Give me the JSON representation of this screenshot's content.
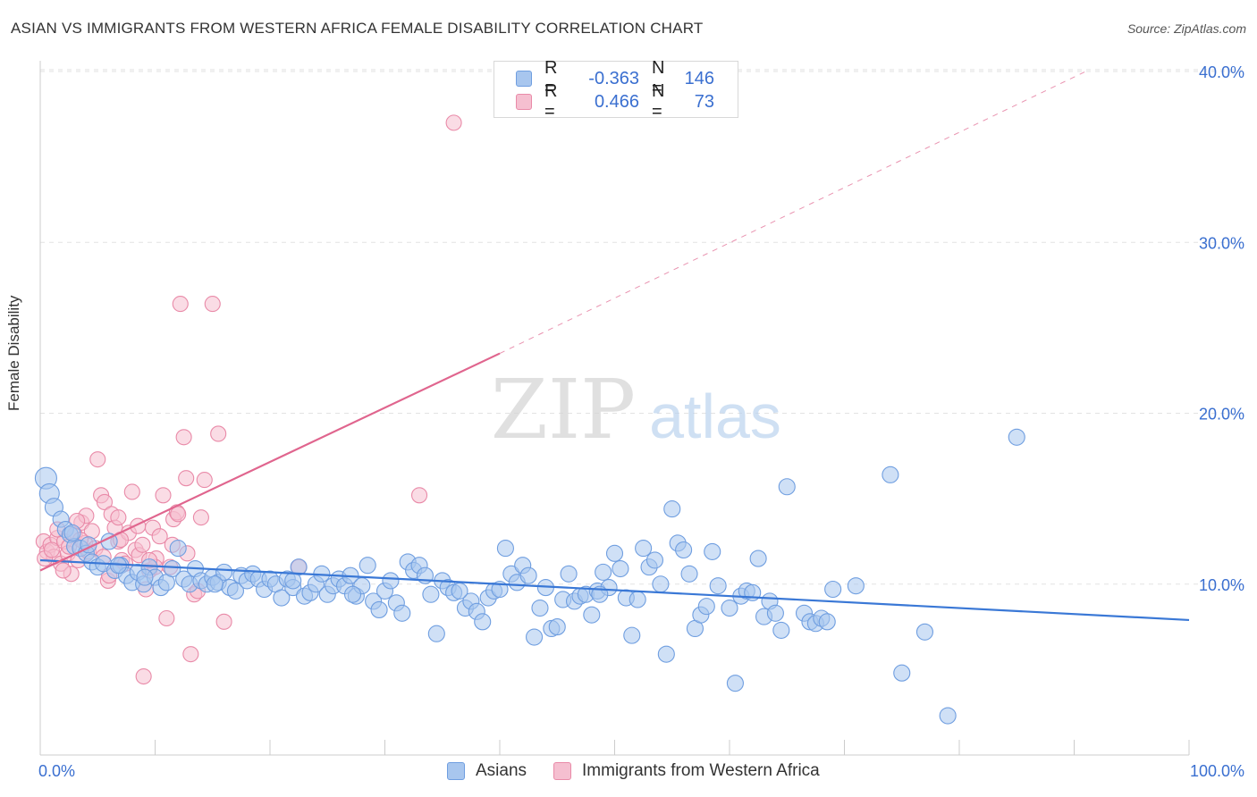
{
  "title": "ASIAN VS IMMIGRANTS FROM WESTERN AFRICA FEMALE DISABILITY CORRELATION CHART",
  "source": "Source: ZipAtlas.com",
  "watermark": {
    "zip": "ZIP",
    "atlas": "atlas"
  },
  "legend": {
    "rows": [
      {
        "label": "R =",
        "r": "-0.363",
        "n_label": "N =",
        "n": "146"
      },
      {
        "label": "R =",
        "r": "0.466",
        "n_label": "N =",
        "n": "73"
      }
    ],
    "bottom": [
      "Asians",
      "Immigrants from Western Africa"
    ]
  },
  "colors": {
    "asian_fill": "#a8c6ee",
    "asian_stroke": "#6f9ee0",
    "asian_line": "#3a78d6",
    "waf_fill": "#f5bfd0",
    "waf_stroke": "#e98aa8",
    "waf_line": "#e0658e",
    "axis_label": "#3a6fd0",
    "grid": "#e2e2e2"
  },
  "chart_data": {
    "type": "scatter",
    "title": "ASIAN VS IMMIGRANTS FROM WESTERN AFRICA FEMALE DISABILITY CORRELATION CHART",
    "xlabel": "",
    "ylabel": "Female Disability",
    "xlim": [
      0,
      100
    ],
    "ylim": [
      0,
      42
    ],
    "x_tick_labels": [
      "0.0%",
      "100.0%"
    ],
    "y_ticks": [
      10,
      20,
      30,
      40
    ],
    "y_tick_labels": [
      "10.0%",
      "20.0%",
      "30.0%",
      "40.0%"
    ],
    "series": [
      {
        "name": "Asians",
        "r": -0.363,
        "n": 146,
        "trend": {
          "x0": 0,
          "y0": 11.4,
          "x1": 100,
          "y1": 7.9
        },
        "points": [
          [
            0.5,
            16.2
          ],
          [
            0.8,
            15.3
          ],
          [
            1.2,
            14.5
          ],
          [
            1.8,
            13.8
          ],
          [
            2.2,
            13.2
          ],
          [
            2.6,
            12.9
          ],
          [
            3.0,
            12.2
          ],
          [
            3.5,
            12.1
          ],
          [
            4.0,
            11.8
          ],
          [
            4.5,
            11.3
          ],
          [
            5.0,
            11.0
          ],
          [
            5.5,
            11.2
          ],
          [
            6.0,
            12.5
          ],
          [
            6.5,
            10.8
          ],
          [
            7.0,
            11.1
          ],
          [
            7.5,
            10.5
          ],
          [
            8.0,
            10.1
          ],
          [
            8.5,
            10.7
          ],
          [
            9.0,
            10.0
          ],
          [
            9.5,
            11.0
          ],
          [
            10.0,
            10.4
          ],
          [
            10.5,
            9.8
          ],
          [
            11.0,
            10.1
          ],
          [
            11.5,
            10.9
          ],
          [
            12.0,
            12.1
          ],
          [
            12.5,
            10.3
          ],
          [
            13.0,
            10.0
          ],
          [
            13.5,
            10.9
          ],
          [
            14.0,
            10.2
          ],
          [
            14.5,
            10.0
          ],
          [
            15.0,
            10.4
          ],
          [
            15.5,
            10.1
          ],
          [
            16.0,
            10.7
          ],
          [
            16.5,
            9.8
          ],
          [
            17.0,
            9.6
          ],
          [
            17.5,
            10.5
          ],
          [
            18.0,
            10.2
          ],
          [
            18.5,
            10.6
          ],
          [
            19.0,
            10.3
          ],
          [
            19.5,
            9.7
          ],
          [
            20.0,
            10.3
          ],
          [
            20.5,
            10.0
          ],
          [
            21.0,
            9.2
          ],
          [
            21.5,
            10.3
          ],
          [
            22.0,
            9.8
          ],
          [
            22.5,
            11.0
          ],
          [
            23.0,
            9.3
          ],
          [
            23.5,
            9.5
          ],
          [
            24.0,
            10.0
          ],
          [
            24.5,
            10.6
          ],
          [
            25.0,
            9.4
          ],
          [
            25.5,
            9.9
          ],
          [
            26.0,
            10.3
          ],
          [
            26.5,
            9.9
          ],
          [
            27.0,
            10.5
          ],
          [
            27.5,
            9.3
          ],
          [
            28.0,
            9.9
          ],
          [
            28.5,
            11.1
          ],
          [
            29.0,
            9.0
          ],
          [
            29.5,
            8.5
          ],
          [
            30.0,
            9.6
          ],
          [
            30.5,
            10.2
          ],
          [
            31.0,
            8.9
          ],
          [
            31.5,
            8.3
          ],
          [
            32.0,
            11.3
          ],
          [
            32.5,
            10.8
          ],
          [
            33.0,
            11.1
          ],
          [
            33.5,
            10.5
          ],
          [
            34.0,
            9.4
          ],
          [
            34.5,
            7.1
          ],
          [
            35.0,
            10.2
          ],
          [
            35.5,
            9.8
          ],
          [
            36.0,
            9.5
          ],
          [
            37.0,
            8.6
          ],
          [
            37.5,
            9.0
          ],
          [
            38.0,
            8.4
          ],
          [
            38.5,
            7.8
          ],
          [
            39.0,
            9.2
          ],
          [
            39.5,
            9.6
          ],
          [
            40.0,
            9.7
          ],
          [
            40.5,
            12.1
          ],
          [
            41.0,
            10.6
          ],
          [
            41.5,
            10.1
          ],
          [
            42.0,
            11.1
          ],
          [
            42.5,
            10.5
          ],
          [
            43.0,
            6.9
          ],
          [
            43.5,
            8.6
          ],
          [
            44.0,
            9.8
          ],
          [
            44.5,
            7.4
          ],
          [
            45.0,
            7.5
          ],
          [
            45.5,
            9.1
          ],
          [
            46.0,
            10.6
          ],
          [
            46.5,
            9.0
          ],
          [
            47.0,
            9.3
          ],
          [
            47.5,
            9.4
          ],
          [
            48.0,
            8.2
          ],
          [
            48.5,
            9.6
          ],
          [
            49.0,
            10.7
          ],
          [
            49.5,
            9.8
          ],
          [
            50.0,
            11.8
          ],
          [
            50.5,
            10.9
          ],
          [
            51.0,
            9.2
          ],
          [
            51.5,
            7.0
          ],
          [
            52.0,
            9.1
          ],
          [
            52.5,
            12.1
          ],
          [
            53.0,
            11.0
          ],
          [
            53.5,
            11.4
          ],
          [
            54.0,
            10.0
          ],
          [
            54.5,
            5.9
          ],
          [
            55.0,
            14.4
          ],
          [
            55.5,
            12.4
          ],
          [
            56.0,
            12.0
          ],
          [
            56.5,
            10.6
          ],
          [
            57.0,
            7.4
          ],
          [
            57.5,
            8.2
          ],
          [
            58.0,
            8.7
          ],
          [
            58.5,
            11.9
          ],
          [
            59.0,
            9.9
          ],
          [
            60.0,
            8.6
          ],
          [
            60.5,
            4.2
          ],
          [
            61.0,
            9.3
          ],
          [
            61.5,
            9.6
          ],
          [
            62.0,
            9.5
          ],
          [
            62.5,
            11.5
          ],
          [
            63.0,
            8.1
          ],
          [
            63.5,
            9.0
          ],
          [
            64.0,
            8.3
          ],
          [
            64.5,
            7.3
          ],
          [
            65.0,
            15.7
          ],
          [
            66.5,
            8.3
          ],
          [
            67.0,
            7.8
          ],
          [
            67.5,
            7.7
          ],
          [
            68.0,
            8.0
          ],
          [
            68.5,
            7.8
          ],
          [
            69.0,
            9.7
          ],
          [
            71.0,
            9.9
          ],
          [
            74.0,
            16.4
          ],
          [
            75.0,
            4.8
          ],
          [
            77.0,
            7.2
          ],
          [
            79.0,
            2.3
          ],
          [
            85.0,
            18.6
          ],
          [
            48.7,
            9.4
          ],
          [
            36.5,
            9.6
          ],
          [
            27.2,
            9.4
          ],
          [
            22.0,
            10.2
          ],
          [
            15.2,
            10.0
          ],
          [
            9.1,
            10.4
          ],
          [
            6.8,
            11.1
          ],
          [
            4.2,
            12.3
          ],
          [
            2.8,
            13.0
          ]
        ]
      },
      {
        "name": "Immigrants from Western Africa",
        "r": 0.466,
        "n": 73,
        "trend": {
          "x0": 0,
          "y0": 10.8,
          "x1": 40,
          "y1": 23.5,
          "x_dash_end": 91,
          "y_dash_end": 40.0
        },
        "points": [
          [
            0.3,
            12.5
          ],
          [
            0.6,
            11.9
          ],
          [
            0.9,
            12.3
          ],
          [
            1.2,
            11.6
          ],
          [
            1.5,
            12.7
          ],
          [
            1.8,
            11.2
          ],
          [
            2.1,
            12.5
          ],
          [
            2.4,
            11.8
          ],
          [
            2.7,
            10.6
          ],
          [
            3.0,
            12.9
          ],
          [
            3.3,
            11.4
          ],
          [
            3.6,
            13.6
          ],
          [
            3.9,
            12.4
          ],
          [
            4.2,
            11.9
          ],
          [
            4.5,
            13.1
          ],
          [
            4.8,
            12.1
          ],
          [
            5.0,
            17.3
          ],
          [
            5.3,
            15.2
          ],
          [
            5.6,
            14.8
          ],
          [
            5.9,
            10.2
          ],
          [
            6.2,
            14.1
          ],
          [
            6.5,
            13.3
          ],
          [
            6.8,
            12.5
          ],
          [
            7.1,
            11.4
          ],
          [
            7.4,
            11.2
          ],
          [
            7.7,
            13.0
          ],
          [
            8.0,
            15.4
          ],
          [
            8.3,
            12.0
          ],
          [
            8.6,
            11.7
          ],
          [
            8.9,
            12.3
          ],
          [
            9.2,
            9.7
          ],
          [
            9.5,
            10.8
          ],
          [
            9.8,
            13.3
          ],
          [
            10.1,
            11.5
          ],
          [
            10.4,
            12.8
          ],
          [
            10.7,
            15.2
          ],
          [
            11.0,
            8.0
          ],
          [
            11.3,
            11.0
          ],
          [
            11.6,
            13.8
          ],
          [
            11.9,
            14.2
          ],
          [
            12.2,
            26.4
          ],
          [
            12.5,
            18.6
          ],
          [
            12.8,
            11.8
          ],
          [
            13.1,
            5.9
          ],
          [
            13.4,
            9.4
          ],
          [
            13.7,
            9.6
          ],
          [
            14.0,
            13.9
          ],
          [
            14.3,
            16.1
          ],
          [
            15.0,
            26.4
          ],
          [
            15.5,
            18.8
          ],
          [
            16.0,
            7.8
          ],
          [
            12.7,
            16.2
          ],
          [
            9.0,
            4.6
          ],
          [
            22.5,
            11.0
          ],
          [
            33.0,
            15.2
          ],
          [
            36.0,
            37.0
          ],
          [
            0.4,
            11.5
          ],
          [
            1.0,
            12.0
          ],
          [
            2.0,
            10.8
          ],
          [
            3.5,
            12.6
          ],
          [
            4.0,
            14.0
          ],
          [
            6.0,
            10.5
          ],
          [
            7.0,
            12.6
          ],
          [
            8.5,
            13.4
          ],
          [
            10.0,
            11.0
          ],
          [
            11.5,
            12.3
          ],
          [
            1.5,
            13.2
          ],
          [
            2.5,
            12.2
          ],
          [
            5.5,
            11.6
          ],
          [
            6.8,
            13.9
          ],
          [
            9.5,
            11.4
          ],
          [
            12.0,
            14.1
          ],
          [
            3.2,
            13.7
          ]
        ]
      }
    ]
  }
}
